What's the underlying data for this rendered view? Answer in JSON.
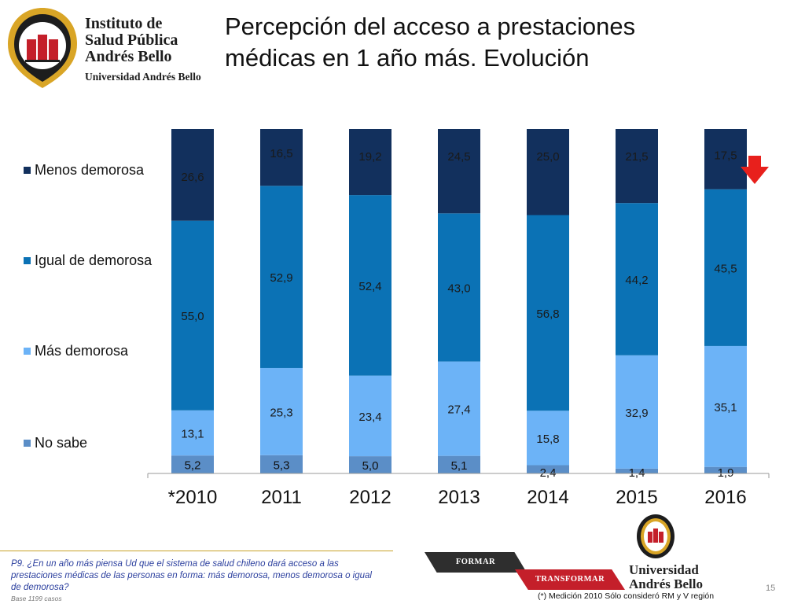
{
  "logo": {
    "line1": "Instituto de",
    "line2": "Salud Pública",
    "line3": "Andrés Bello",
    "sub": "Universidad Andrés Bello"
  },
  "title": {
    "line1": "Percepción del acceso a prestaciones",
    "line2": "médicas en 1 año más. Evolución"
  },
  "chart_data": {
    "type": "bar",
    "stacked": true,
    "orientation": "vertical",
    "categories": [
      "*2010",
      "2011",
      "2012",
      "2013",
      "2014",
      "2015",
      "2016"
    ],
    "series": [
      {
        "name": "No sabe",
        "color": "#5b8ec7",
        "values": [
          5.2,
          5.3,
          5.0,
          5.1,
          2.4,
          1.4,
          1.9
        ],
        "labels": [
          "5,2",
          "5,3",
          "5,0",
          "5,1",
          "2,4",
          "1,4",
          "1,9"
        ]
      },
      {
        "name": "Más demorosa",
        "color": "#6cb3f7",
        "values": [
          13.1,
          25.3,
          23.4,
          27.4,
          15.8,
          32.9,
          35.1
        ],
        "labels": [
          "13,1",
          "25,3",
          "23,4",
          "27,4",
          "15,8",
          "32,9",
          "35,1"
        ]
      },
      {
        "name": "Igual de demorosa",
        "color": "#0b72b5",
        "values": [
          55.0,
          52.9,
          52.4,
          43.0,
          56.8,
          44.2,
          45.5
        ],
        "labels": [
          "55,0",
          "52,9",
          "52,4",
          "43,0",
          "56,8",
          "44,2",
          "45,5"
        ]
      },
      {
        "name": "Menos demorosa",
        "color": "#12305d",
        "values": [
          26.6,
          16.5,
          19.2,
          24.5,
          25.0,
          21.5,
          17.5
        ],
        "labels": [
          "26,6",
          "16,5",
          "19,2",
          "24,5",
          "25,0",
          "21,5",
          "17,5"
        ]
      }
    ],
    "ylim": [
      0,
      100
    ],
    "grid": false,
    "legend_position": "left",
    "annotation": "red-down-arrow next to 2016 Menos demorosa"
  },
  "footer": {
    "question": "P9. ¿En un año más piensa Ud que el sistema de salud chileno dará acceso a las prestaciones médicas de las personas en forma: más demorosa, menos demorosa o igual de demorosa?",
    "base": "Base 1199 casos",
    "ribbon1": "FORMAR",
    "ribbon2": "TRANSFORMAR",
    "logo_bottom_line1": "Universidad",
    "logo_bottom_line2": "Andrés Bello",
    "footnote": "(*) Medición 2010 Sólo consideró RM y V región",
    "page": "15"
  }
}
